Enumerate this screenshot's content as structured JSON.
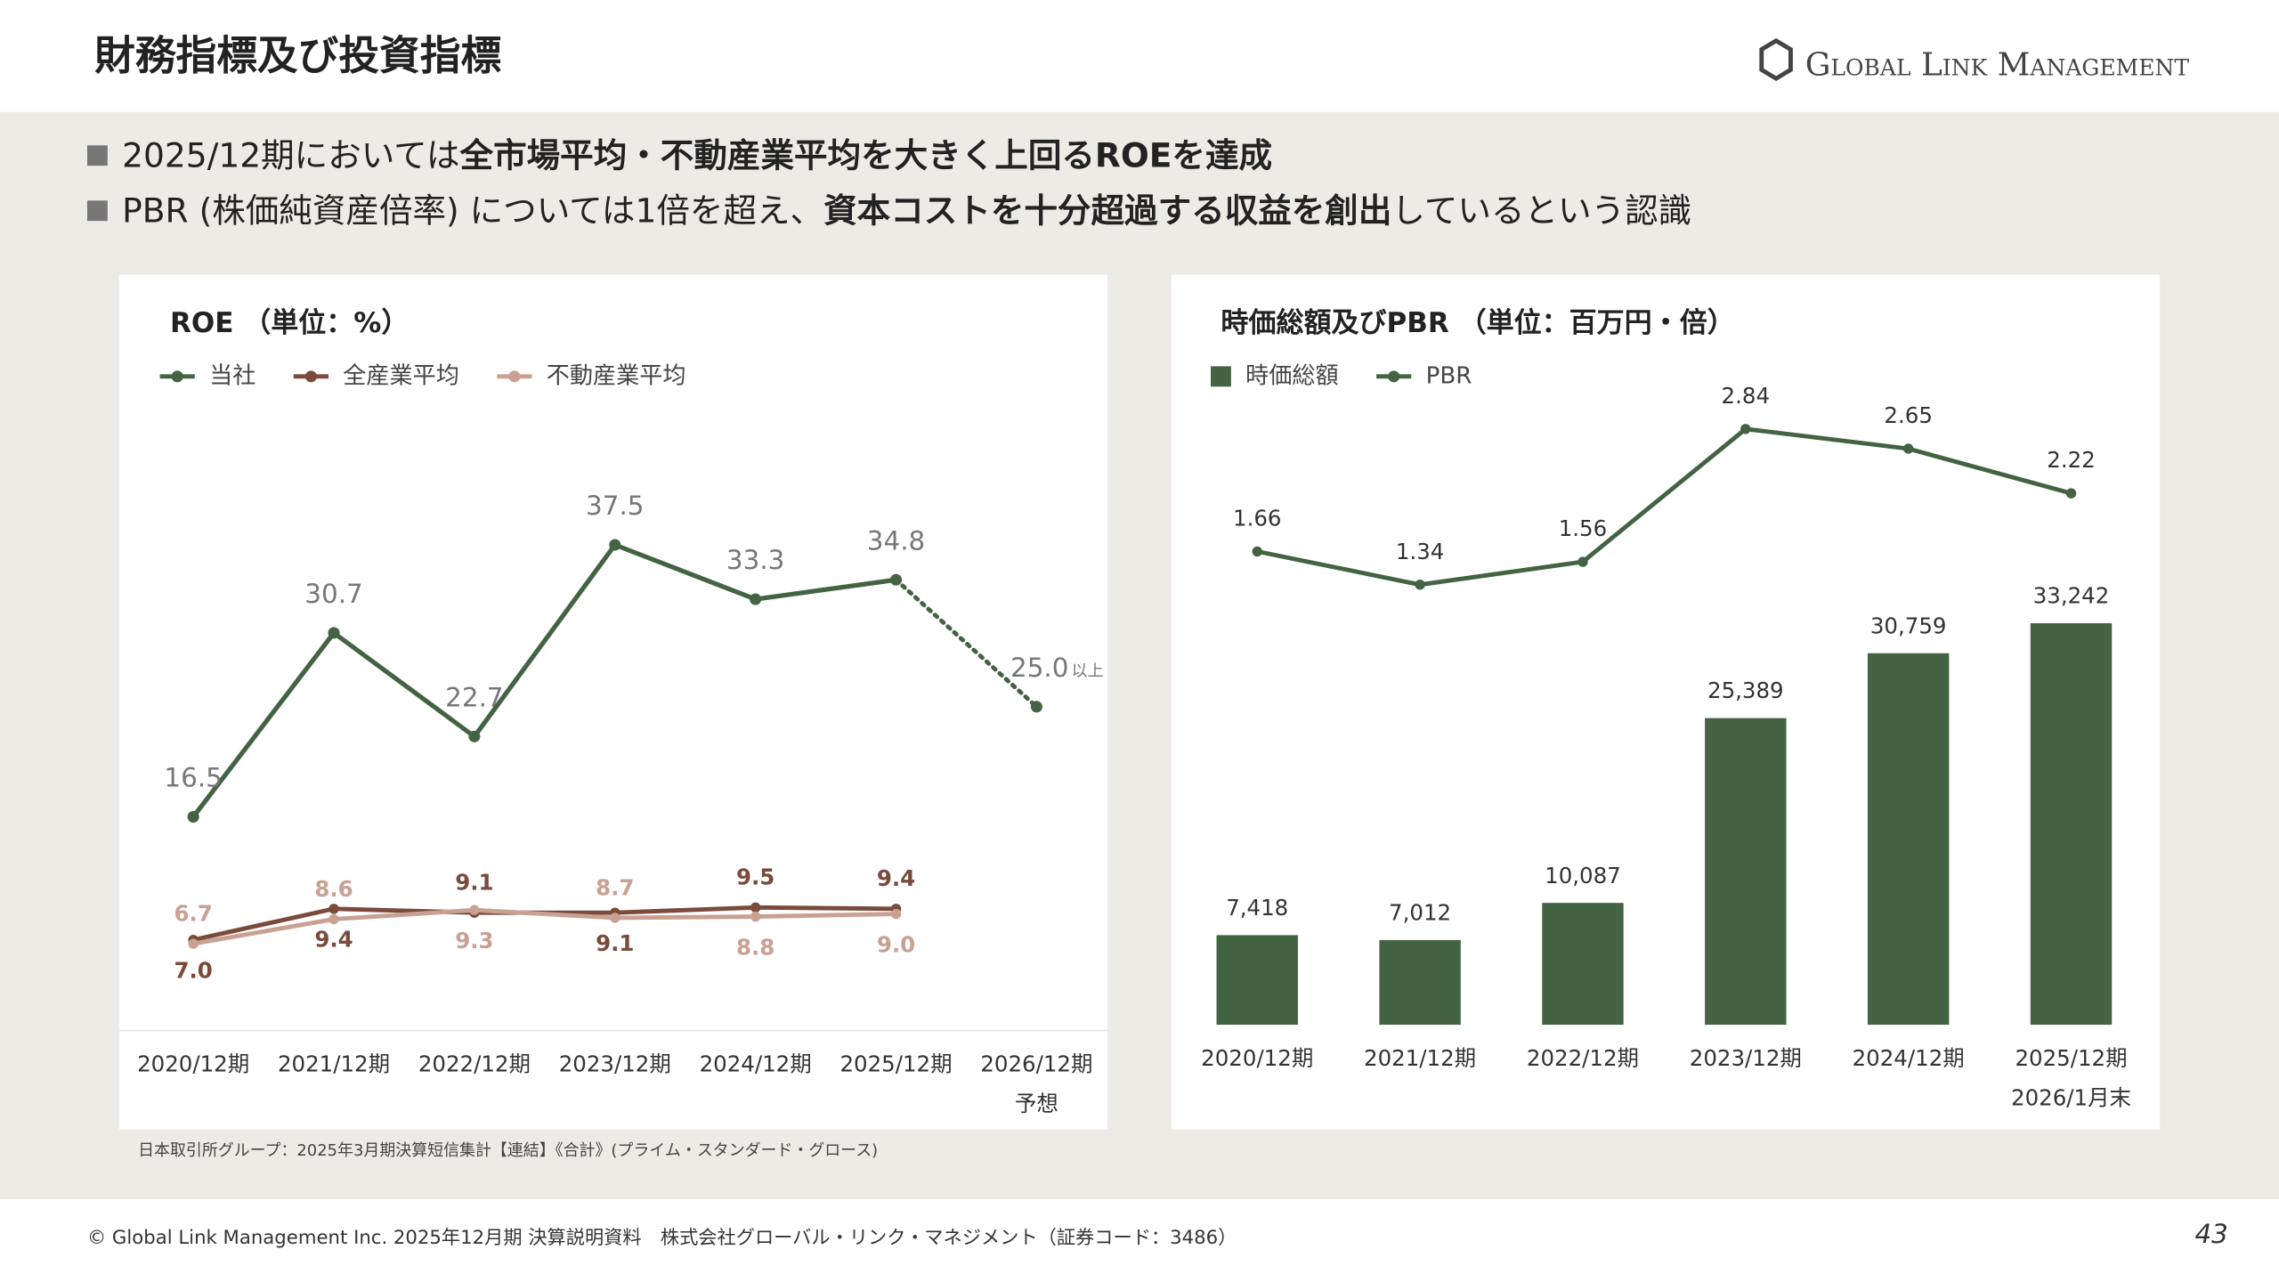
{
  "header": {
    "title": "財務指標及び投資指標",
    "logo": "Global Link Management"
  },
  "bullets": [
    {
      "parts": [
        "2025/12期においては",
        "全市場平均・不動産業平均を大きく上回るROEを達成"
      ],
      "bold": [
        false,
        true
      ]
    },
    {
      "parts": [
        "PBR (株価純資産倍率) については1倍を超え、",
        "資本コストを十分超過する収益を創出",
        "しているという認識"
      ],
      "bold": [
        false,
        true,
        false
      ]
    }
  ],
  "chart_data": [
    {
      "type": "line",
      "title": "ROE （単位：%）",
      "categories": [
        "2020/12期",
        "2021/12期",
        "2022/12期",
        "2023/12期",
        "2024/12期",
        "2025/12期",
        "2026/12期"
      ],
      "category_notes": [
        null,
        null,
        null,
        null,
        null,
        null,
        "予想"
      ],
      "ylim": [
        0,
        45
      ],
      "legend": "top-left",
      "series": [
        {
          "name": "当社",
          "color": "#436343",
          "values": [
            16.5,
            30.7,
            22.7,
            37.5,
            33.3,
            34.8,
            25.0
          ],
          "value_labels": [
            "16.5",
            "30.7",
            "22.7",
            "37.5",
            "33.3",
            "34.8",
            "25.0"
          ],
          "forecast_index": 6,
          "annotation": "以上"
        },
        {
          "name": "全産業平均",
          "color": "#7a4a3a",
          "values": [
            7.0,
            9.4,
            9.1,
            9.1,
            9.5,
            9.4,
            null
          ],
          "value_labels": [
            "7.0",
            "9.4",
            "9.1",
            "9.1",
            "9.5",
            "9.4",
            null
          ],
          "label_positions": [
            "below",
            "below",
            "above",
            "below",
            "above",
            "above",
            null
          ]
        },
        {
          "name": "不動産業平均",
          "color": "#c9a193",
          "values": [
            6.7,
            8.6,
            9.3,
            8.7,
            8.8,
            9.0,
            null
          ],
          "value_labels": [
            "6.7",
            "8.6",
            "9.3",
            "8.7",
            "8.8",
            "9.0",
            null
          ],
          "label_positions": [
            "above",
            "above",
            "below",
            "above",
            "below",
            "below",
            null
          ]
        }
      ]
    },
    {
      "type": "bar",
      "title": "時価総額及びPBR （単位：百万円・倍）",
      "categories": [
        "2020/12期",
        "2021/12期",
        "2022/12期",
        "2023/12期",
        "2024/12期",
        "2025/12期"
      ],
      "category_notes": [
        null,
        null,
        null,
        null,
        null,
        "2026/1月末"
      ],
      "ylim": [
        0,
        55000
      ],
      "y2lim": [
        -2.9,
        3.5
      ],
      "legend": "top-left",
      "series": [
        {
          "name": "時価総額",
          "type": "bar",
          "color": "#436343",
          "values": [
            7418,
            7012,
            10087,
            25389,
            30759,
            33242
          ],
          "value_labels": [
            "7,418",
            "7,012",
            "10,087",
            "25,389",
            "30,759",
            "33,242"
          ]
        },
        {
          "name": "PBR",
          "type": "line",
          "axis": "y2",
          "color": "#436343",
          "values": [
            1.66,
            1.34,
            1.56,
            2.84,
            2.65,
            2.22
          ]
        }
      ]
    }
  ],
  "source": "日本取引所グループ：2025年3月期決算短信集計【連結】《合計》(プライム・スタンダード・グロース)",
  "footer": {
    "copyright": "© Global Link Management Inc. 2025年12月期 決算説明資料　株式会社グローバル・リンク・マネジメント（証券コード：3486）",
    "page": 43
  }
}
